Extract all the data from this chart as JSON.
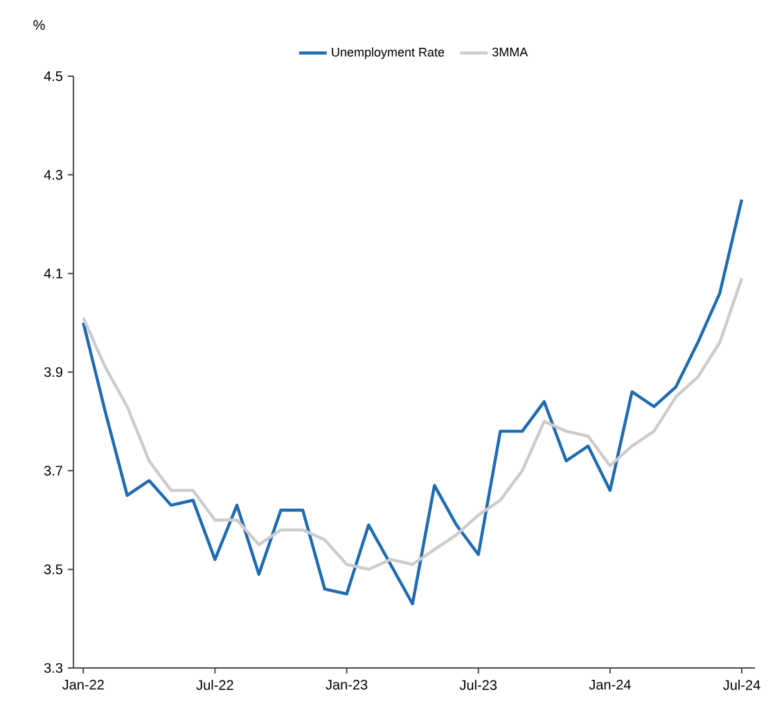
{
  "chart_data": {
    "type": "line",
    "ylabel": "%",
    "categories": [
      "Jan-22",
      null,
      null,
      null,
      null,
      null,
      "Jul-22",
      null,
      null,
      null,
      null,
      null,
      "Jan-23",
      null,
      null,
      null,
      null,
      null,
      "Jul-23",
      null,
      null,
      null,
      null,
      null,
      "Jan-24",
      null,
      null,
      null,
      null,
      null,
      "Jul-24"
    ],
    "series": [
      {
        "name": "Unemployment Rate",
        "color": "#1f6bb0",
        "values": [
          4.0,
          3.82,
          3.65,
          3.68,
          3.63,
          3.64,
          3.52,
          3.63,
          3.49,
          3.62,
          3.62,
          3.46,
          3.45,
          3.59,
          3.51,
          3.43,
          3.67,
          3.59,
          3.53,
          3.78,
          3.78,
          3.84,
          3.72,
          3.75,
          3.66,
          3.86,
          3.83,
          3.87,
          3.96,
          4.06,
          4.25
        ]
      },
      {
        "name": "3MMA",
        "color": "#cccccc",
        "values": [
          4.01,
          3.91,
          3.83,
          3.72,
          3.66,
          3.66,
          3.6,
          3.6,
          3.55,
          3.58,
          3.58,
          3.56,
          3.51,
          3.5,
          3.52,
          3.51,
          3.54,
          3.57,
          3.61,
          3.64,
          3.7,
          3.8,
          3.78,
          3.77,
          3.71,
          3.75,
          3.78,
          3.85,
          3.89,
          3.96,
          4.09
        ]
      }
    ],
    "ylim": [
      3.3,
      4.5
    ],
    "yticks": [
      3.3,
      3.5,
      3.7,
      3.9,
      4.1,
      4.3,
      4.5
    ],
    "legend": "top",
    "grid": false,
    "marker": "none",
    "line_style": "solid"
  }
}
